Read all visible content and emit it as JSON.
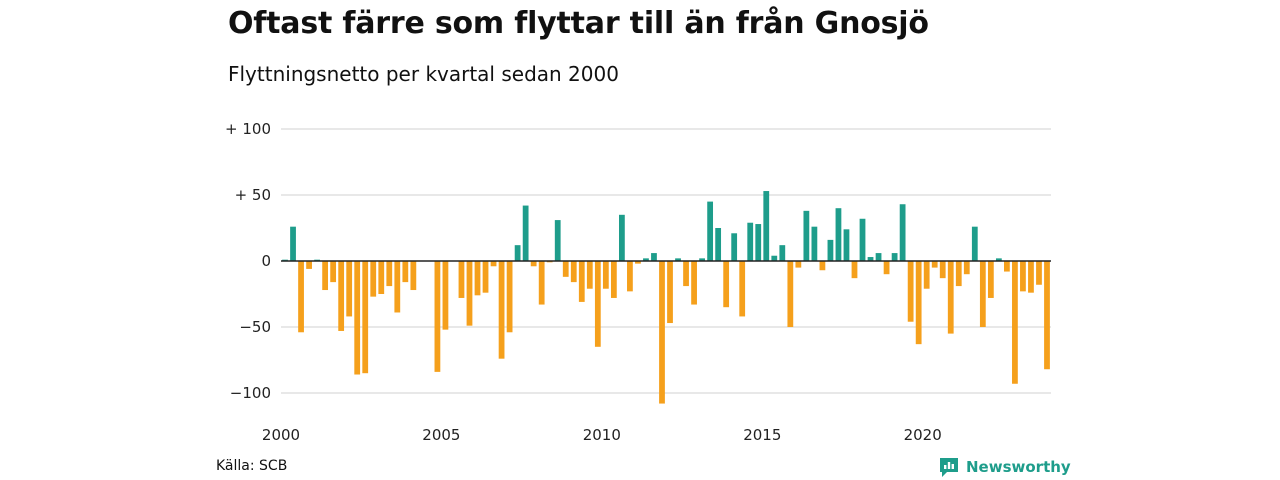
{
  "title": "Oftast färre som flyttar till än från Gnosjö",
  "subtitle": "Flyttningsnetto per kvartal sedan 2000",
  "source": "Källa: SCB",
  "brand": {
    "name": "Newsworthy",
    "icon": "newsworthy-logo-icon"
  },
  "colors": {
    "positive": "#1e9d8b",
    "negative": "#f5a01c",
    "grid": "#d9d9d9",
    "zero_line": "#222222"
  },
  "chart_data": {
    "type": "bar",
    "title": "Oftast färre som flyttar till än från Gnosjö",
    "subtitle": "Flyttningsnetto per kvartal sedan 2000",
    "xlabel": "",
    "ylabel": "",
    "ylim": [
      -110,
      100
    ],
    "y_ticks": [
      {
        "value": 100,
        "label": "+ 100"
      },
      {
        "value": 50,
        "label": "+  50"
      },
      {
        "value": 0,
        "label": "0"
      },
      {
        "value": -50,
        "label": "−50"
      },
      {
        "value": -100,
        "label": "−100"
      }
    ],
    "x_ticks": [
      "2000",
      "2005",
      "2010",
      "2015",
      "2020"
    ],
    "grid": true,
    "legend": "none",
    "categories": [
      "2000 K1",
      "2000 K2",
      "2000 K3",
      "2000 K4",
      "2001 K1",
      "2001 K2",
      "2001 K3",
      "2001 K4",
      "2002 K1",
      "2002 K2",
      "2002 K3",
      "2002 K4",
      "2003 K1",
      "2003 K2",
      "2003 K3",
      "2003 K4",
      "2004 K1",
      "2004 K2",
      "2004 K3",
      "2004 K4",
      "2005 K1",
      "2005 K2",
      "2005 K3",
      "2005 K4",
      "2006 K1",
      "2006 K2",
      "2006 K3",
      "2006 K4",
      "2007 K1",
      "2007 K2",
      "2007 K3",
      "2007 K4",
      "2008 K1",
      "2008 K2",
      "2008 K3",
      "2008 K4",
      "2009 K1",
      "2009 K2",
      "2009 K3",
      "2009 K4",
      "2010 K1",
      "2010 K2",
      "2010 K3",
      "2010 K4",
      "2011 K1",
      "2011 K2",
      "2011 K3",
      "2011 K4",
      "2012 K1",
      "2012 K2",
      "2012 K3",
      "2012 K4",
      "2013 K1",
      "2013 K2",
      "2013 K3",
      "2013 K4",
      "2014 K1",
      "2014 K2",
      "2014 K3",
      "2014 K4",
      "2015 K1",
      "2015 K2",
      "2015 K3",
      "2015 K4",
      "2016 K1",
      "2016 K2",
      "2016 K3",
      "2016 K4",
      "2017 K1",
      "2017 K2",
      "2017 K3",
      "2017 K4",
      "2018 K1",
      "2018 K2",
      "2018 K3",
      "2018 K4",
      "2019 K1",
      "2019 K2",
      "2019 K3",
      "2019 K4",
      "2020 K1",
      "2020 K2",
      "2020 K3",
      "2020 K4",
      "2021 K1",
      "2021 K2",
      "2021 K3",
      "2021 K4",
      "2022 K1",
      "2022 K2",
      "2022 K3",
      "2022 K4",
      "2023 K1",
      "2023 K2",
      "2023 K3",
      "2023 K4"
    ],
    "values": [
      1,
      26,
      -54,
      -6,
      1,
      -22,
      -16,
      -53,
      -42,
      -86,
      -85,
      -27,
      -25,
      -19,
      -39,
      -16,
      -22,
      0,
      0,
      -84,
      -52,
      0,
      -28,
      -49,
      -26,
      -24,
      -4,
      -74,
      -54,
      12,
      42,
      -4,
      -33,
      -1,
      31,
      -12,
      -16,
      -31,
      -21,
      -65,
      -21,
      -28,
      35,
      -23,
      -2,
      2,
      6,
      -108,
      -47,
      2,
      -19,
      -33,
      2,
      45,
      25,
      -35,
      21,
      -42,
      29,
      28,
      53,
      4,
      12,
      -50,
      -5,
      38,
      26,
      -7,
      16,
      40,
      24,
      -13,
      32,
      3,
      6,
      -10,
      6,
      43,
      -46,
      -63,
      -21,
      -5,
      -13,
      -55,
      -19,
      -10,
      26,
      -50,
      -28,
      2,
      -8,
      -93,
      -23,
      -24,
      -18,
      -82
    ]
  }
}
